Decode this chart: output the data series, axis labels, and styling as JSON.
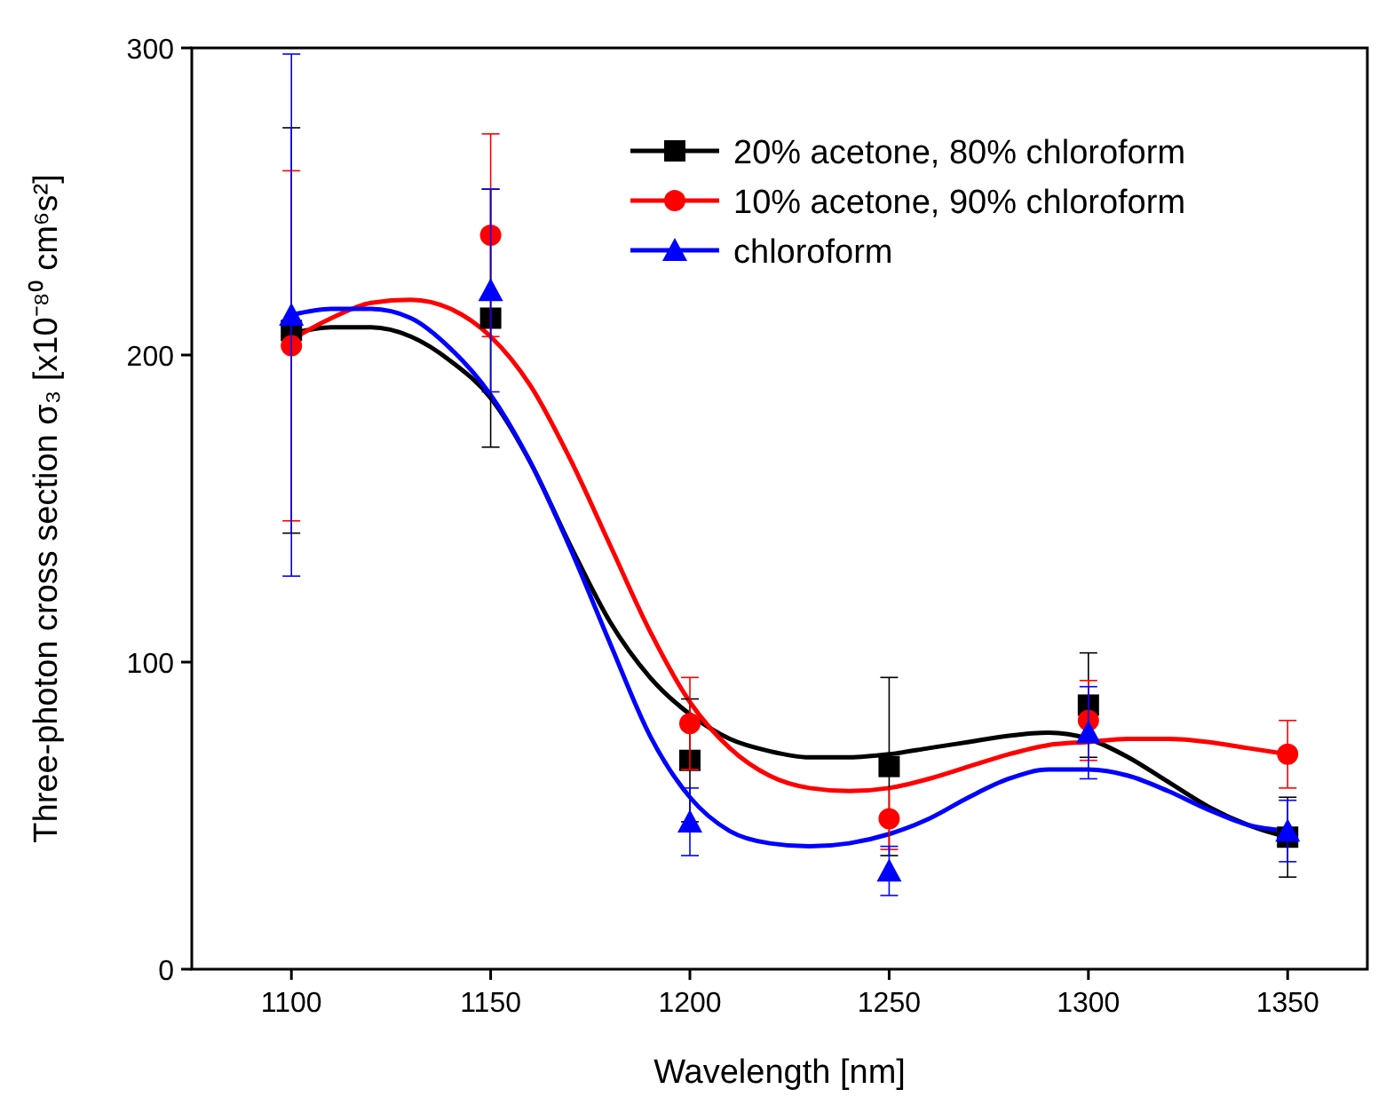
{
  "chart_data": {
    "type": "scatter",
    "xlabel": "Wavelength [nm]",
    "ylabel": "Three-photon cross section σ₃ [x10⁻⁸⁰ cm⁶s²]",
    "xlim": [
      1075,
      1370
    ],
    "xticks": [
      1100,
      1150,
      1200,
      1250,
      1300,
      1350
    ],
    "ylim": [
      0,
      300
    ],
    "yticks": [
      0,
      100,
      200,
      300
    ],
    "grid": false,
    "legend": "top right",
    "x": [
      1100,
      1150,
      1200,
      1250,
      1300,
      1350
    ],
    "series": [
      {
        "name": "20% acetone, 80% chloroform",
        "color": "#000000",
        "marker": "square",
        "values": [
          208,
          212,
          68,
          66,
          86,
          43
        ],
        "errors": [
          66,
          42,
          20,
          29,
          17,
          13
        ]
      },
      {
        "name": "10% acetone, 90% chloroform",
        "color": "#ff0000",
        "marker": "circle",
        "values": [
          203,
          239,
          80,
          49,
          81,
          70
        ],
        "errors": [
          57,
          33,
          15,
          10,
          13,
          11
        ]
      },
      {
        "name": "chloroform",
        "color": "#0000ff",
        "marker": "triangle",
        "values": [
          213,
          221,
          48,
          32,
          77,
          45
        ],
        "errors": [
          85,
          33,
          11,
          8,
          15,
          10
        ]
      },
      {
        "type": "line",
        "color": "#000000",
        "marker": "none",
        "x": [
          1100,
          1110,
          1120,
          1130,
          1140,
          1150,
          1160,
          1170,
          1180,
          1190,
          1200,
          1210,
          1220,
          1230,
          1240,
          1250,
          1260,
          1270,
          1280,
          1290,
          1300,
          1310,
          1320,
          1330,
          1340,
          1350
        ],
        "values": [
          207,
          209,
          209,
          206,
          198,
          186,
          165,
          138,
          113,
          95,
          83,
          75,
          71,
          69,
          69,
          70,
          72,
          74,
          76,
          77,
          75,
          69,
          61,
          53,
          47,
          43
        ]
      },
      {
        "type": "line",
        "color": "#ff0000",
        "marker": "none",
        "x": [
          1100,
          1110,
          1120,
          1130,
          1140,
          1150,
          1160,
          1170,
          1180,
          1190,
          1200,
          1210,
          1220,
          1230,
          1240,
          1250,
          1260,
          1270,
          1280,
          1290,
          1300,
          1310,
          1320,
          1330,
          1340,
          1350
        ],
        "values": [
          205,
          212,
          217,
          218,
          215,
          206,
          190,
          166,
          138,
          110,
          87,
          72,
          63,
          59,
          58,
          59,
          62,
          66,
          70,
          73,
          74,
          75,
          75,
          74,
          72,
          70
        ]
      },
      {
        "type": "line",
        "color": "#0000ff",
        "marker": "none",
        "x": [
          1100,
          1110,
          1120,
          1130,
          1140,
          1150,
          1160,
          1170,
          1180,
          1190,
          1200,
          1210,
          1220,
          1230,
          1240,
          1250,
          1260,
          1270,
          1280,
          1290,
          1300,
          1310,
          1320,
          1330,
          1340,
          1350
        ],
        "values": [
          213,
          215,
          215,
          212,
          202,
          187,
          165,
          137,
          106,
          76,
          56,
          45,
          41,
          40,
          41,
          44,
          49,
          56,
          62,
          65,
          65,
          63,
          58,
          52,
          47,
          45
        ]
      }
    ]
  }
}
